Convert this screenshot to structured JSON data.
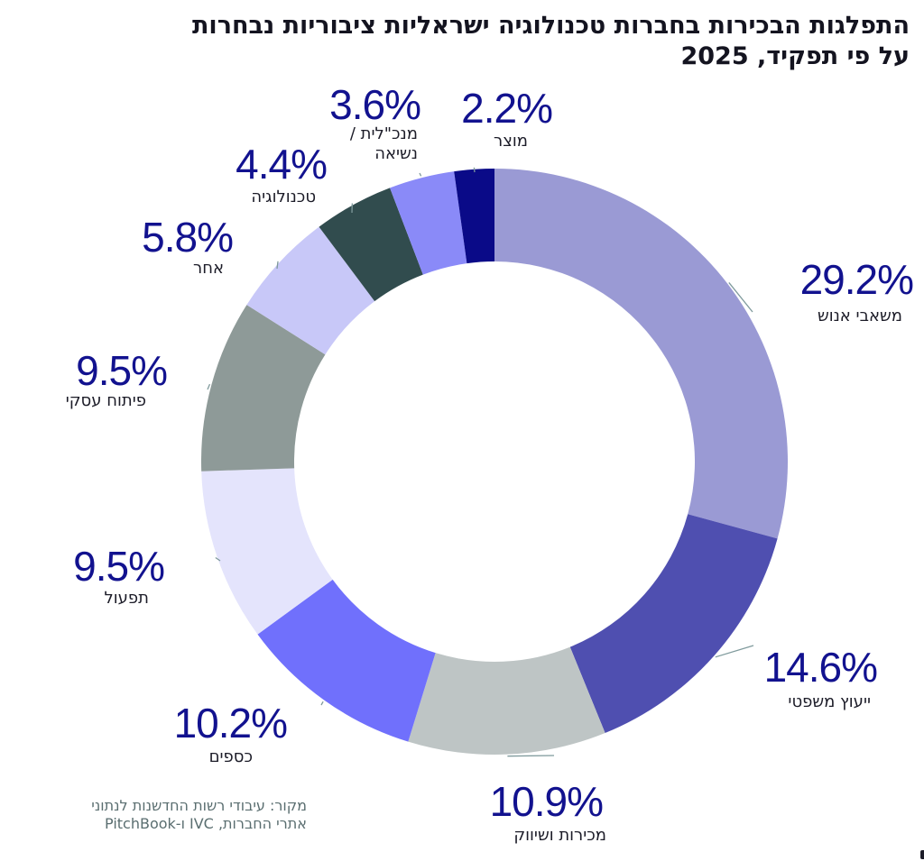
{
  "title_lines": [
    "התפלגות הבכירות בחברות טכנולוגיה ישראליות ציבוריות נבחרות",
    "על פי תפקיד, 2025"
  ],
  "source_lines": [
    "מקור: עיבודי רשות החדשנות לנתוני",
    "אתרי החברות, IVC ו-PitchBook"
  ],
  "chart_data": {
    "type": "pie",
    "donut": true,
    "unit": "%",
    "categories": [
      "משאבי אנוש",
      "ייעוץ משפטי",
      "מכירות ושיווק",
      "כספים",
      "תפעול",
      "פיתוח עסקי",
      "אחר",
      "טכנולוגיה",
      "מנכ\"לית / נשיאה",
      "מוצר"
    ],
    "values": [
      29.2,
      14.6,
      10.9,
      10.2,
      9.5,
      9.5,
      5.8,
      4.4,
      3.6,
      2.2
    ],
    "value_labels": [
      "29.2%",
      "14.6%",
      "10.9%",
      "10.2%",
      "9.5%",
      "9.5%",
      "5.8%",
      "4.4%",
      "3.6%",
      "2.2%"
    ],
    "colors": [
      "#9a9ad4",
      "#4f4fb0",
      "#bec5c5",
      "#7070fc",
      "#e4e4fc",
      "#8e9a98",
      "#c8c8f8",
      "#314c4e",
      "#8a8af8",
      "#0a0a88"
    ]
  }
}
